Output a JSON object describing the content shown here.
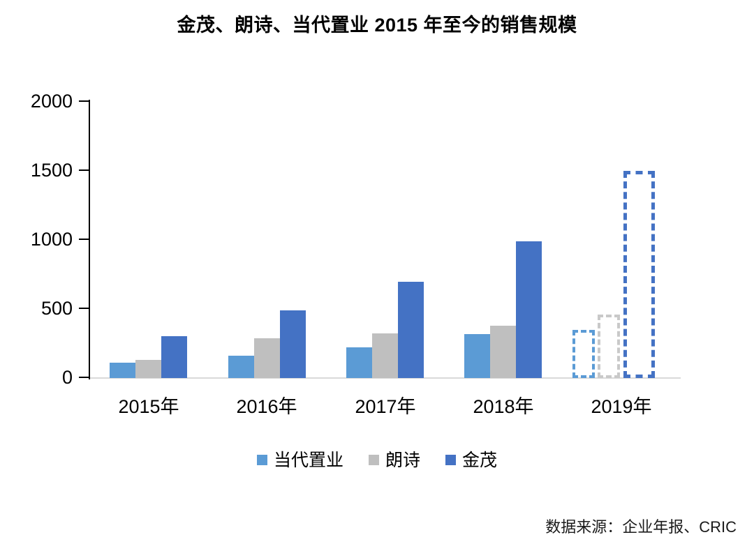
{
  "chart_data": {
    "type": "bar",
    "title": "金茂、朗诗、当代置业 2015 年至今的销售规模",
    "categories": [
      "2015年",
      "2016年",
      "2017年",
      "2018年",
      "2019年"
    ],
    "series": [
      {
        "key": "dangdaizhiye",
        "name": "当代置业",
        "color": "#5B9BD5",
        "forecast_color": "#5B9BD5",
        "values": [
          112,
          163,
          220,
          318,
          350
        ]
      },
      {
        "key": "langshi",
        "name": "朗诗",
        "color": "#BFBFBF",
        "forecast_color": "#C9C9C9",
        "values": [
          132,
          288,
          321,
          381,
          460
        ]
      },
      {
        "key": "jinmao",
        "name": "金茂",
        "color": "#4472C4",
        "forecast_color": "#4472C4",
        "values": [
          303,
          490,
          695,
          990,
          1500
        ]
      }
    ],
    "forecast_category": "2019年",
    "forecast_style": "dashed-outline",
    "ylim": [
      0,
      2000
    ],
    "yticks": [
      0,
      500,
      1000,
      1500,
      2000
    ],
    "grid": false,
    "legend_position": "bottom",
    "axis_line_color": "#D9D9D9",
    "tick_color": "#000000"
  },
  "footer": {
    "source": "数据来源：企业年报、CRIC"
  }
}
